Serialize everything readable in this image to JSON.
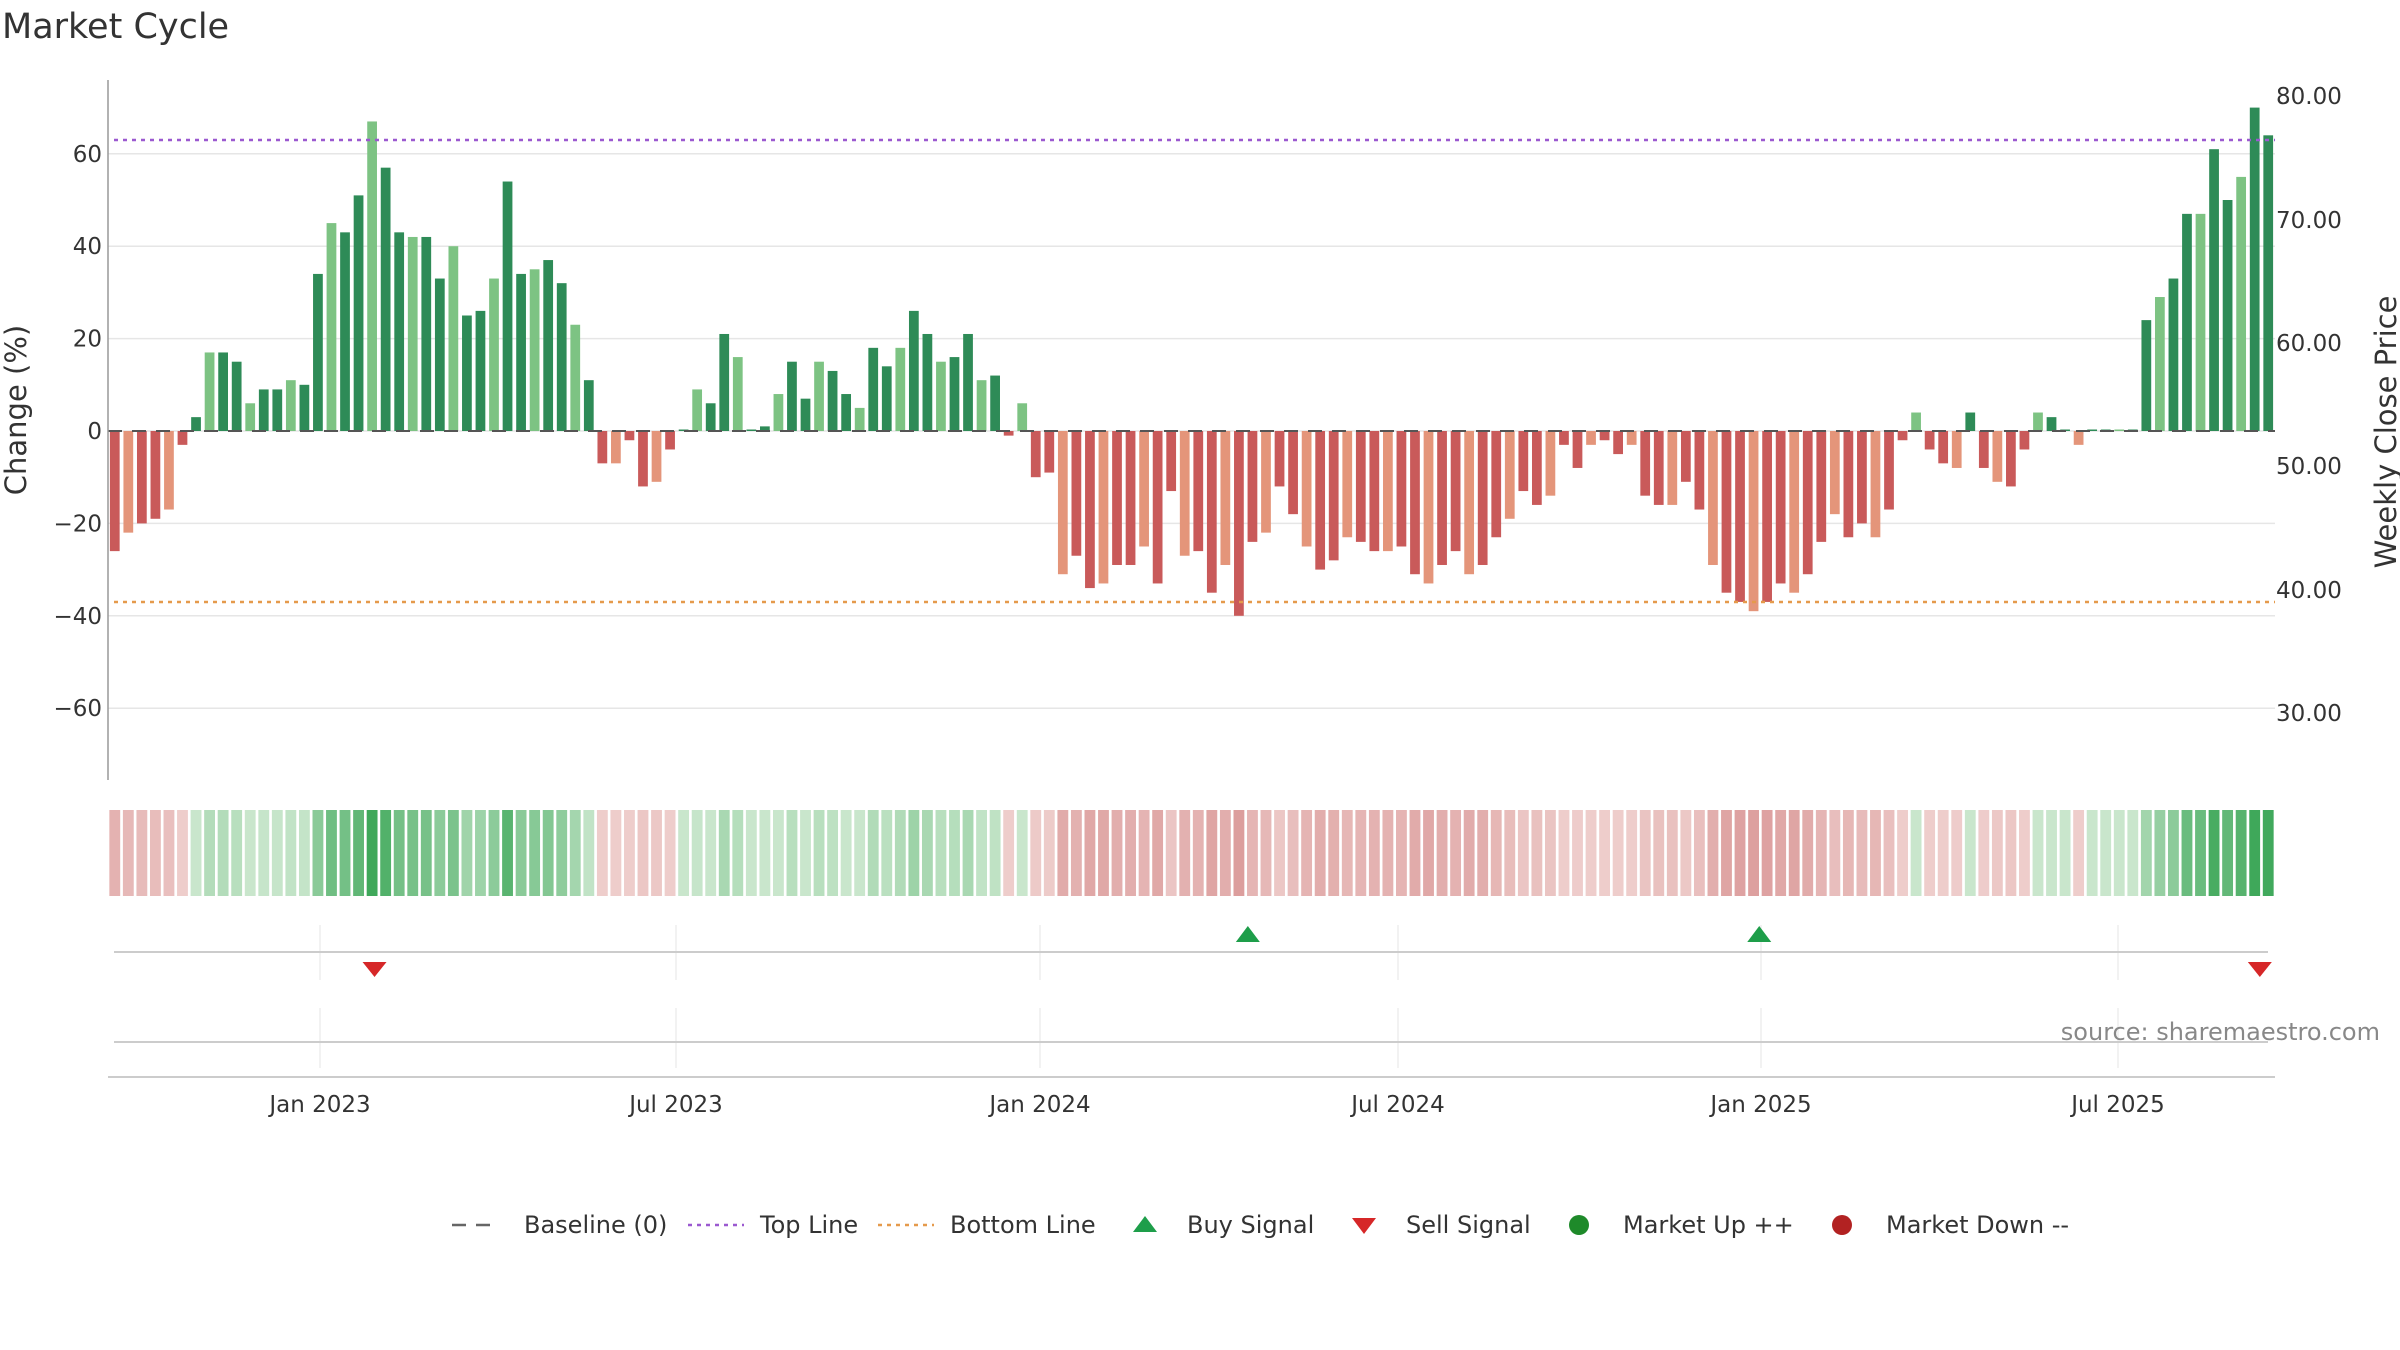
{
  "chart_data": {
    "type": "bar",
    "title": "Market Cycle",
    "ylabel_left": "Change (%)",
    "ylabel_right": "Weekly Close Price",
    "ylim": [
      -75,
      75
    ],
    "yticks_left": [
      "60",
      "40",
      "20",
      "0",
      "−20",
      "−40",
      "−60"
    ],
    "yticks_right": [
      "80.00",
      "70.00",
      "60.00",
      "50.00",
      "40.00",
      "30.00"
    ],
    "xticks": [
      "Jan 2023",
      "Jul 2023",
      "Jan 2024",
      "Jul 2024",
      "Jan 2025",
      "Jul 2025"
    ],
    "top_line": 63,
    "bottom_line": -37,
    "values": [
      -26,
      -22,
      -20,
      -19,
      -17,
      -3,
      3,
      17,
      17,
      15,
      6,
      9,
      9,
      11,
      10,
      34,
      45,
      43,
      51,
      67,
      57,
      43,
      42,
      42,
      33,
      40,
      25,
      26,
      33,
      54,
      34,
      35,
      37,
      32,
      23,
      11,
      -7,
      -7,
      -2,
      -12,
      -11,
      -4,
      0,
      9,
      6,
      21,
      16,
      0,
      1,
      8,
      15,
      7,
      15,
      13,
      8,
      5,
      18,
      14,
      18,
      26,
      21,
      15,
      16,
      21,
      11,
      12,
      -1,
      6,
      -10,
      -9,
      -31,
      -27,
      -34,
      -33,
      -29,
      -29,
      -25,
      -33,
      -13,
      -27,
      -26,
      -35,
      -29,
      -40,
      -24,
      -22,
      -12,
      -18,
      -25,
      -30,
      -28,
      -23,
      -24,
      -26,
      -26,
      -25,
      -31,
      -33,
      -29,
      -26,
      -31,
      -29,
      -23,
      -19,
      -13,
      -16,
      -14,
      -3,
      -8,
      -3,
      -2,
      -5,
      -3,
      -14,
      -16,
      -16,
      -11,
      -17,
      -29,
      -35,
      -37,
      -39,
      -37,
      -33,
      -35,
      -31,
      -24,
      -18,
      -23,
      -20,
      -23,
      -17,
      -2,
      4,
      -4,
      -7,
      -8,
      4,
      -8,
      -11,
      -12,
      -4,
      4,
      3,
      0,
      -3,
      0,
      0,
      0,
      0,
      24,
      29,
      33,
      47,
      47,
      61,
      50,
      55,
      70,
      64
    ],
    "signals": [
      {
        "type": "sell",
        "x": 0.123
      },
      {
        "type": "buy",
        "x": 0.526
      },
      {
        "type": "buy",
        "x": 0.762
      },
      {
        "type": "sell",
        "x": 0.993
      }
    ],
    "source_note": "source: sharemaestro.com",
    "legend": [
      {
        "label": "Baseline (0)",
        "kind": "dash",
        "color": "#666666"
      },
      {
        "label": "Top Line",
        "kind": "dot",
        "color": "#9b59d0"
      },
      {
        "label": "Bottom Line",
        "kind": "dot",
        "color": "#e59a4c"
      },
      {
        "label": "Buy Signal",
        "kind": "tri-up",
        "color": "#1e9e4a"
      },
      {
        "label": "Sell Signal",
        "kind": "tri-down",
        "color": "#d62728"
      },
      {
        "label": "Market Up ++",
        "kind": "circle",
        "color": "#1e8a2a"
      },
      {
        "label": "Market Down --",
        "kind": "circle",
        "color": "#b22222"
      }
    ],
    "colors": {
      "pos_dark": "#2e8b57",
      "pos_light": "#7dc383",
      "neg_dark": "#c95a5a",
      "neg_light": "#e4957a"
    }
  }
}
